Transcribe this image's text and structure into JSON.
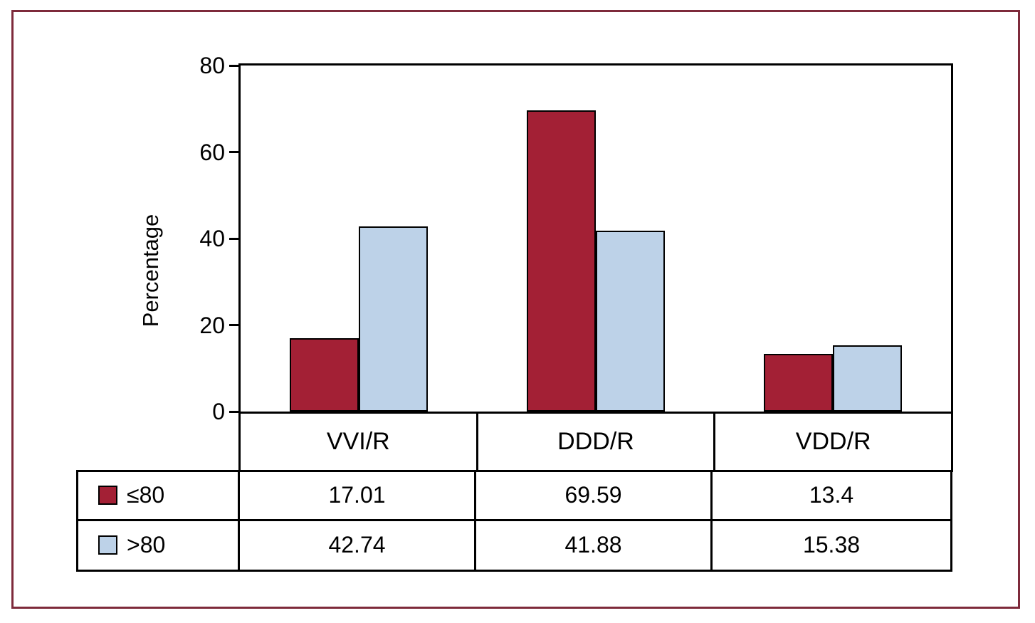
{
  "chart_data": {
    "type": "bar",
    "title": "",
    "ylabel": "Percentage",
    "xlabel": "",
    "ylim": [
      0,
      80
    ],
    "yticks": [
      0,
      20,
      40,
      60,
      80
    ],
    "grid": false,
    "legend_position": "table-left",
    "categories": [
      "VVI/R",
      "DDD/R",
      "VDD/R"
    ],
    "series": [
      {
        "name": "≤80",
        "color": "#A32035",
        "values": [
          17.01,
          69.59,
          13.4
        ]
      },
      {
        "name": ">80",
        "color": "#BDD2E8",
        "values": [
          42.74,
          41.88,
          15.38
        ]
      }
    ]
  },
  "frame": {
    "border_color": "#7E2A3B"
  },
  "axis_color": "#000000"
}
